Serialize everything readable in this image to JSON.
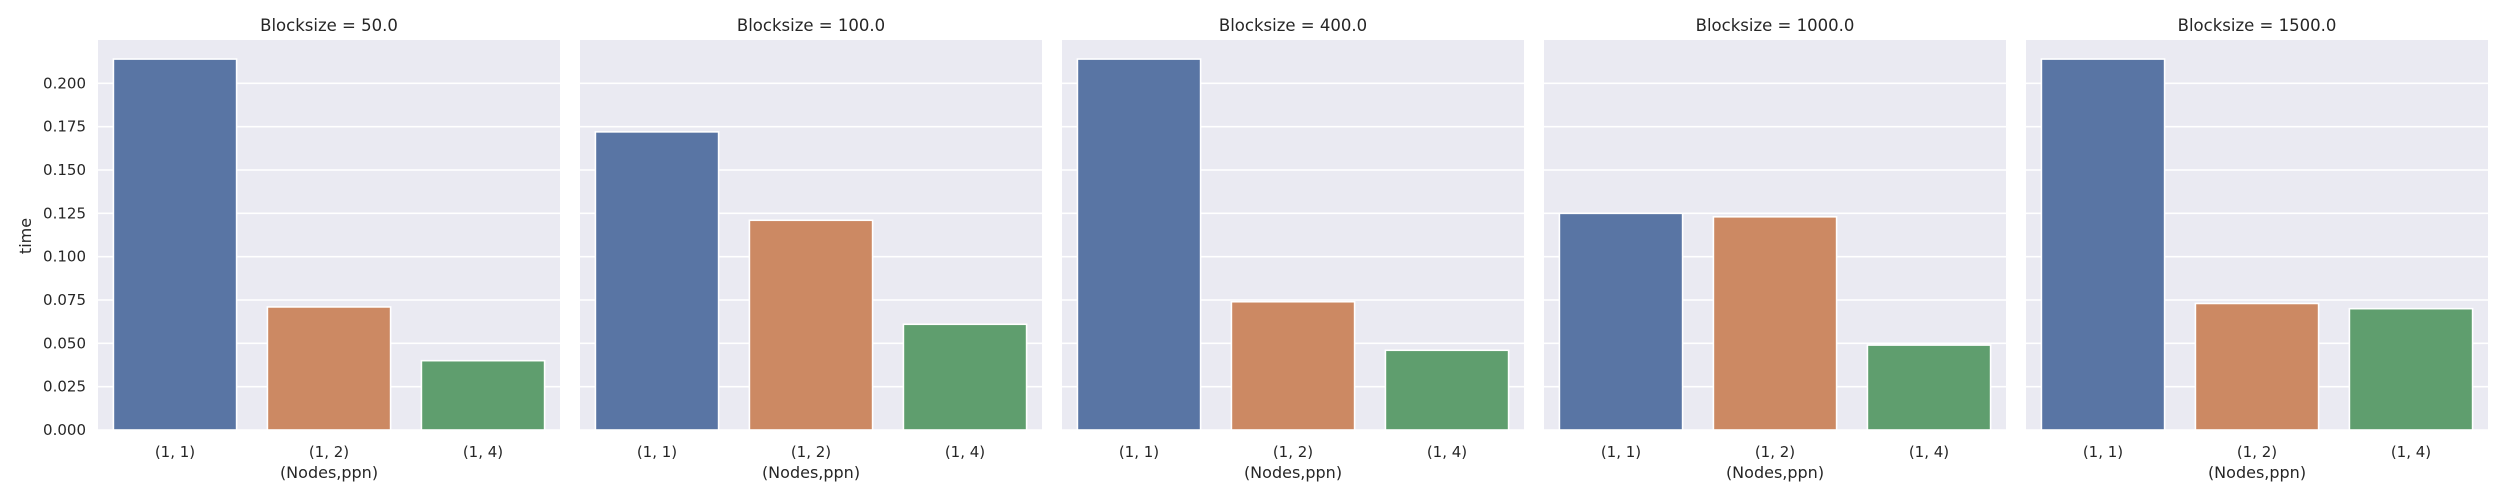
{
  "chart_data": {
    "type": "bar",
    "xlabel": "(Nodes,ppn)",
    "ylabel": "time",
    "ylim": [
      0,
      0.225
    ],
    "yticks": [
      "0.000",
      "0.025",
      "0.050",
      "0.075",
      "0.100",
      "0.125",
      "0.150",
      "0.175",
      "0.200"
    ],
    "categories": [
      "(1, 1)",
      "(1, 2)",
      "(1, 4)"
    ],
    "colors": [
      "#5975a4",
      "#cc8963",
      "#5f9e6e"
    ],
    "grid": true,
    "panels": [
      {
        "title": "Blocksize = 50.0",
        "values": [
          0.214,
          0.071,
          0.04
        ]
      },
      {
        "title": "Blocksize = 100.0",
        "values": [
          0.172,
          0.121,
          0.061
        ]
      },
      {
        "title": "Blocksize = 400.0",
        "values": [
          0.214,
          0.074,
          0.046
        ]
      },
      {
        "title": "Blocksize = 1000.0",
        "values": [
          0.125,
          0.123,
          0.049
        ]
      },
      {
        "title": "Blocksize = 1500.0",
        "values": [
          0.214,
          0.073,
          0.07
        ]
      }
    ]
  }
}
